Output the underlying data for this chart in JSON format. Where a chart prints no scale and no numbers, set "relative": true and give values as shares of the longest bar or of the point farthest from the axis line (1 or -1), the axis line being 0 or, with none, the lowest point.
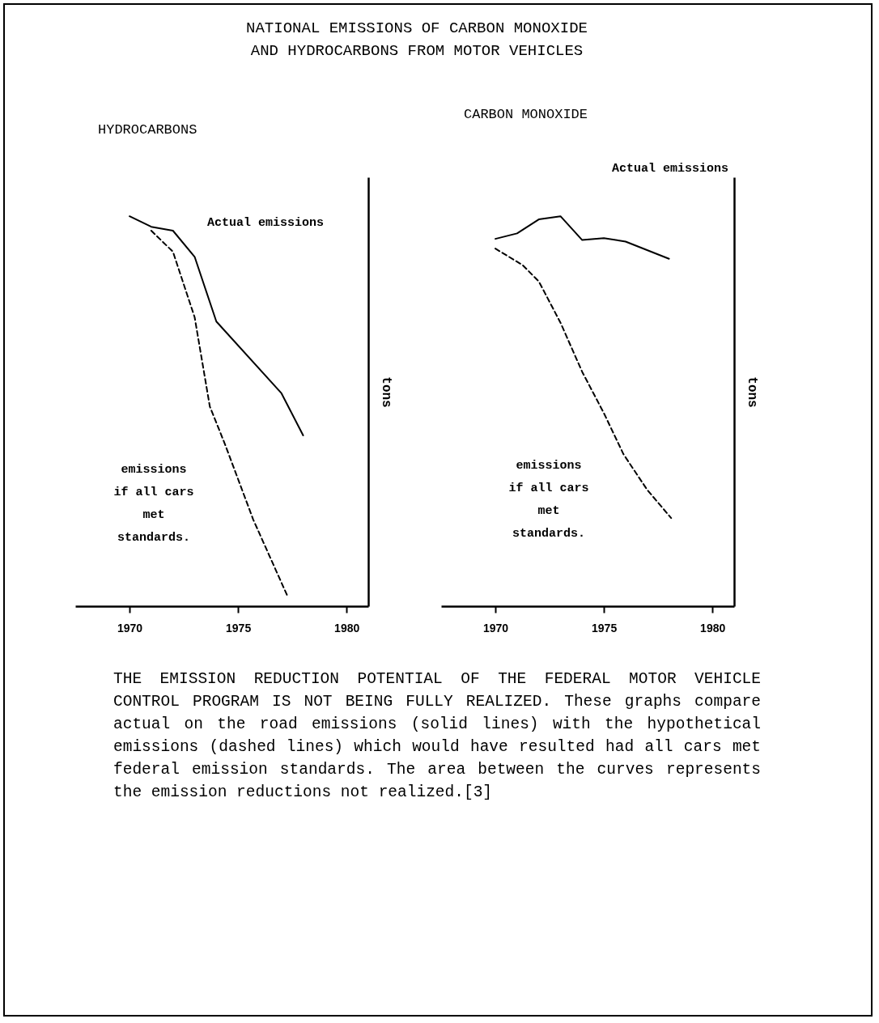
{
  "chart_data": [
    {
      "type": "line",
      "title": "NATIONAL EMISSIONS OF CARBON MONOXIDE\nAND HYDROCARBONS FROM MOTOR VEHICLES",
      "subtitle": "HYDROCARBONS",
      "ylabel": "tons",
      "relative": true,
      "xlim": [
        1967.5,
        1981
      ],
      "xticks": [
        1970,
        1975,
        1980
      ],
      "grid": false,
      "series": [
        {
          "x": [
            1970,
            1971,
            1972,
            1973,
            1974,
            1977,
            1978
          ],
          "values": [
            1,
            0.973,
            0.963,
            0.896,
            0.73,
            0.546,
            0.438
          ],
          "color": "#000000",
          "line_style": "solid"
        },
        {
          "x": [
            1971,
            1972,
            1973,
            1973.7,
            1974.4,
            1975.7,
            1977.3
          ],
          "values": [
            0.963,
            0.909,
            0.741,
            0.512,
            0.415,
            0.222,
            0.023
          ],
          "color": "#000000",
          "line_style": "dashed"
        }
      ],
      "annotations": [
        "Actual emissions",
        "emissions\nif all cars\nmet\nstandards."
      ]
    },
    {
      "type": "line",
      "subtitle": "CARBON MONOXIDE",
      "ylabel": "tons",
      "relative": true,
      "xlim": [
        1967.5,
        1981
      ],
      "xticks": [
        1970,
        1975,
        1980
      ],
      "grid": false,
      "series": [
        {
          "x": [
            1970,
            1971,
            1972,
            1973,
            1974,
            1975,
            1976,
            1978
          ],
          "values": [
            0.942,
            0.956,
            0.992,
            1,
            0.939,
            0.944,
            0.935,
            0.891
          ],
          "color": "#000000",
          "line_style": "solid"
        },
        {
          "x": [
            1970,
            1971.25,
            1972,
            1973,
            1974,
            1975,
            1975.9,
            1977,
            1978.1
          ],
          "values": [
            0.917,
            0.875,
            0.833,
            0.727,
            0.601,
            0.495,
            0.39,
            0.298,
            0.226
          ],
          "color": "#000000",
          "line_style": "dashed"
        }
      ],
      "annotations": [
        "Actual emissions",
        "emissions\nif all cars\nmet\nstandards.",
        "THE EMISSION REDUCTION POTENTIAL OF THE FEDERAL MOTOR VEHICLE CONTROL PROGRAM IS NOT BEING FULLY REALIZED.  These graphs compare actual on the road emissions (solid lines) with the hypothetical emissions (dashed lines) which would have resulted had all cars met federal emission standards.  The area between the curves represents the emission reductions not realized.[3]"
      ]
    }
  ]
}
